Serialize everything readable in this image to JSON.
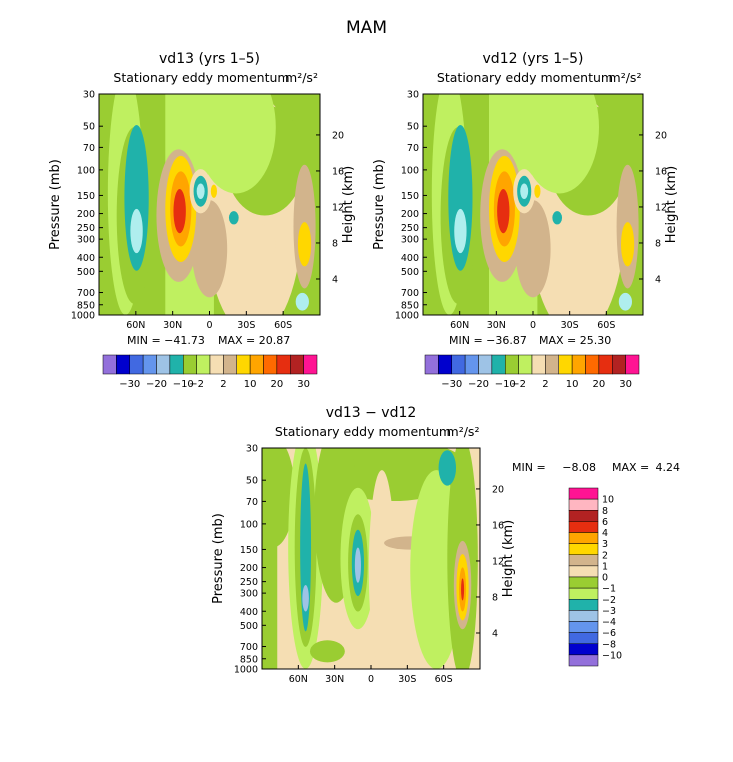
{
  "page_title": "MAM",
  "palette_colors": {
    "lavender": "#9370db",
    "navy": "#0000cd",
    "blue": "#4169e1",
    "cornflower": "#6495ed",
    "lightblue": "#9ec3e6",
    "teal": "#20b2aa",
    "paleteal": "#afeeee",
    "olive": "#9acd32",
    "lime": "#bff060",
    "tan": "#d2b48c",
    "cream": "#f5deb3",
    "yellow": "#ffd700",
    "gold": "#ffa500",
    "orange": "#ff6a00",
    "red": "#e62e10",
    "darkred": "#b22222",
    "pink": "#ffb6c1",
    "magenta": "#ff1493",
    "white": "#ffffff"
  },
  "chart_data": [
    {
      "type": "heatmap",
      "title": "vd13 (yrs 1–5)",
      "subtitle": "Stationary eddy momentum",
      "units": "m²/s²",
      "ylabel": "Pressure (mb)",
      "ylabel_right": "Height (km)",
      "y_ticks": [
        "30",
        "50",
        "70",
        "100",
        "150",
        "200",
        "250",
        "300",
        "400",
        "500",
        "700",
        "850",
        "1000"
      ],
      "y_right_ticks": [
        "20",
        "16",
        "12",
        "8",
        "4"
      ],
      "x_ticks": [
        "60N",
        "30N",
        "0",
        "30S",
        "60S"
      ],
      "min_label": "MIN = −41.73",
      "max_label": "MAX =  20.87",
      "colorbar_labels": [
        "−30",
        "−20",
        "−10",
        "−2",
        "2",
        "10",
        "20",
        "30"
      ],
      "colorbar_colors": [
        "#9370db",
        "#0000cd",
        "#4169e1",
        "#6495ed",
        "#9ec3e6",
        "#20b2aa",
        "#9acd32",
        "#bff060",
        "#f5deb3",
        "#d2b48c",
        "#ffd700",
        "#ffa500",
        "#ff6a00",
        "#e62e10",
        "#b22222",
        "#ff1493"
      ]
    },
    {
      "type": "heatmap",
      "title": "vd12 (yrs 1–5)",
      "subtitle": "Stationary eddy momentum",
      "units": "m²/s²",
      "ylabel": "Pressure (mb)",
      "ylabel_right": "Height (km)",
      "y_ticks": [
        "30",
        "50",
        "70",
        "100",
        "150",
        "200",
        "250",
        "300",
        "400",
        "500",
        "700",
        "850",
        "1000"
      ],
      "y_right_ticks": [
        "20",
        "16",
        "12",
        "8",
        "4"
      ],
      "x_ticks": [
        "60N",
        "30N",
        "0",
        "30S",
        "60S"
      ],
      "min_label": "MIN = −36.87",
      "max_label": "MAX =  25.30",
      "colorbar_labels": [
        "−30",
        "−20",
        "−10",
        "−2",
        "2",
        "10",
        "20",
        "30"
      ],
      "colorbar_colors": [
        "#9370db",
        "#0000cd",
        "#4169e1",
        "#6495ed",
        "#9ec3e6",
        "#20b2aa",
        "#9acd32",
        "#bff060",
        "#f5deb3",
        "#d2b48c",
        "#ffd700",
        "#ffa500",
        "#ff6a00",
        "#e62e10",
        "#b22222",
        "#ff1493"
      ]
    },
    {
      "type": "heatmap",
      "title": "vd13 − vd12",
      "subtitle": "Stationary eddy momentum",
      "units": "m²/s²",
      "ylabel": "Pressure (mb)",
      "ylabel_right": "Height (km)",
      "y_ticks": [
        "30",
        "50",
        "70",
        "100",
        "150",
        "200",
        "250",
        "300",
        "400",
        "500",
        "700",
        "850",
        "1000"
      ],
      "y_right_ticks": [
        "20",
        "16",
        "12",
        "8",
        "4"
      ],
      "x_ticks": [
        "60N",
        "30N",
        "0",
        "30S",
        "60S"
      ],
      "min_label": "MIN =",
      "min_value": "−8.08",
      "max_label": "MAX =",
      "max_value": "4.24",
      "colorbar_labels": [
        "10",
        "8",
        "6",
        "4",
        "3",
        "2",
        "1",
        "0",
        "−1",
        "−2",
        "−3",
        "−4",
        "−6",
        "−8",
        "−10"
      ],
      "colorbar_colors": [
        "#ff1493",
        "#ffb6c1",
        "#b22222",
        "#e62e10",
        "#ffa500",
        "#ffd700",
        "#d2b48c",
        "#f5deb3",
        "#9acd32",
        "#bff060",
        "#20b2aa",
        "#9ec3e6",
        "#6495ed",
        "#4169e1",
        "#0000cd",
        "#9370db"
      ]
    }
  ]
}
